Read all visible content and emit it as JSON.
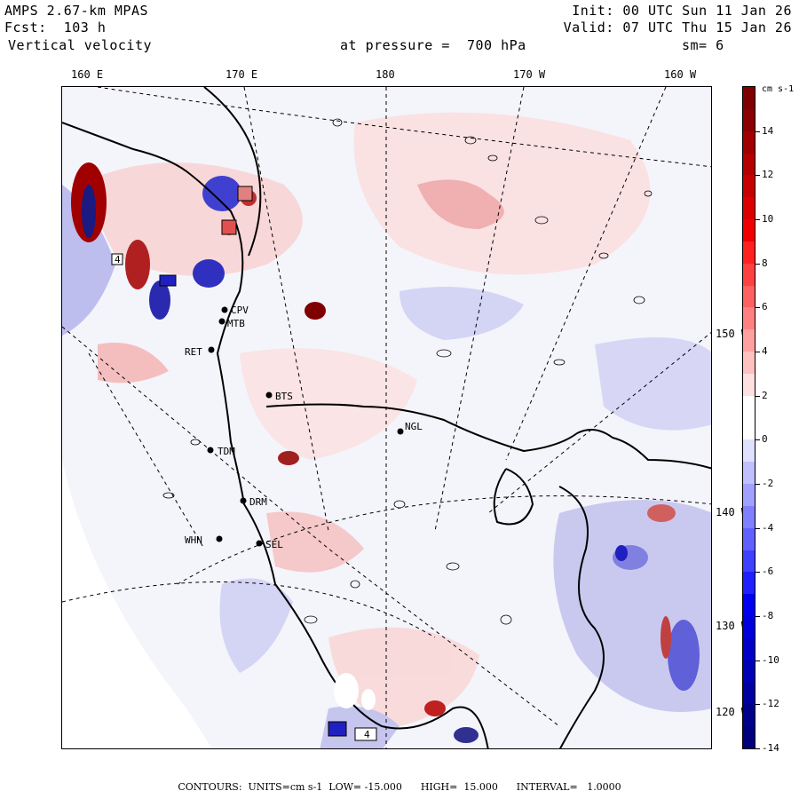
{
  "header": {
    "model": "AMPS 2.67-km MPAS",
    "forecast": "Fcst:  103 h",
    "field": "Vertical velocity",
    "init": "Init: 00 UTC Sun 11 Jan 26",
    "valid": "Valid: 07 UTC Thu 15 Jan 26",
    "pressure": "at pressure =  700 hPa",
    "smoothing": "sm= 6"
  },
  "longitude_labels": [
    "160 E",
    "170 E",
    "180",
    "170 W",
    "160 W"
  ],
  "latitude_labels": [
    "150 W",
    "140 W",
    "130 W",
    "120 W"
  ],
  "colorbar": {
    "units_label": "cm s-1",
    "tick_labels": [
      "14",
      "12",
      "10",
      "8",
      "6",
      "4",
      "2",
      "0",
      "-2",
      "-4",
      "-6",
      "-8",
      "-10",
      "-12",
      "-14"
    ],
    "colors": [
      "#7f0000",
      "#8b0000",
      "#a00000",
      "#b40000",
      "#c80000",
      "#dc0000",
      "#f00000",
      "#ff2020",
      "#ff4040",
      "#ff6060",
      "#ff8080",
      "#ffa0a0",
      "#ffc0c0",
      "#ffe0e0",
      "#ffffff",
      "#ffffff",
      "#e0e0ff",
      "#c0c0ff",
      "#a0a0ff",
      "#8080ff",
      "#6060ff",
      "#4040ff",
      "#2020ff",
      "#0000f0",
      "#0000dc",
      "#0000c8",
      "#0000b4",
      "#0000a0",
      "#00008b",
      "#00007f"
    ]
  },
  "stations": [
    "CPV",
    "MTB",
    "RET",
    "BTS",
    "NGL",
    "TDM",
    "DRM",
    "WHN",
    "SEL"
  ],
  "extrema_labels": [
    "4",
    "4"
  ],
  "footer": "CONTOURS:  UNITS=cm s-1  LOW= -15.000      HIGH=  15.000      INTERVAL=   1.0000",
  "colors": {
    "land_bg": "#f4f4fb",
    "pos_light": "#f8c8c8",
    "neg_light": "#c8c8f0",
    "pos_strong": "#d03030",
    "neg_strong": "#3030d0"
  }
}
